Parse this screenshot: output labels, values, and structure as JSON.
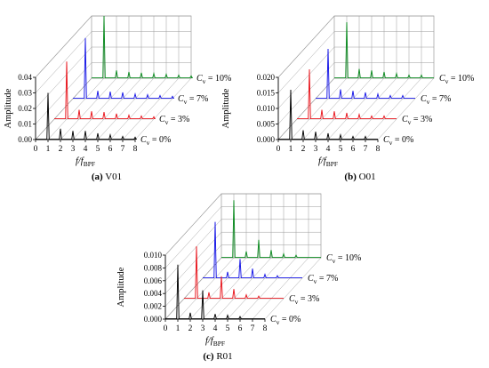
{
  "figure": {
    "axis_y_label": "Amplitude",
    "axis_x_label_main": "f/f",
    "axis_x_label_sub": "BPF",
    "cv_label_prefix": "C",
    "cv_label_sub": "v"
  },
  "colors": {
    "0%": "#000000",
    "3%": "#e8141b",
    "7%": "#1616e6",
    "10%": "#0a8a1f",
    "grid": "#9a9a9a"
  },
  "chart_data": [
    {
      "type": "line",
      "panel": "a",
      "caption_letter": "(a)",
      "caption_name": "V01",
      "xlabel": "f/fBPF",
      "ylabel": "Amplitude",
      "xlim": [
        0,
        8
      ],
      "ylim": [
        0,
        0.04
      ],
      "xticks": [
        0,
        1,
        2,
        3,
        4,
        5,
        6,
        7,
        8
      ],
      "yticks": [
        0.0,
        0.01,
        0.02,
        0.03,
        0.04
      ],
      "ytick_labels": [
        "0.00",
        "0.01",
        "0.02",
        "0.03",
        "0.04"
      ],
      "series": [
        {
          "name": "Cv = 0%",
          "peaks": [
            [
              1,
              0.03
            ],
            [
              2,
              0.007
            ],
            [
              3,
              0.0055
            ],
            [
              4,
              0.0055
            ],
            [
              5,
              0.004
            ],
            [
              6,
              0.003
            ],
            [
              7,
              0.002
            ],
            [
              8,
              0.0015
            ]
          ]
        },
        {
          "name": "Cv = 3%",
          "peaks": [
            [
              1,
              0.037
            ],
            [
              2,
              0.006
            ],
            [
              3,
              0.005
            ],
            [
              4,
              0.0045
            ],
            [
              5,
              0.0035
            ],
            [
              6,
              0.0025
            ],
            [
              7,
              0.002
            ],
            [
              8,
              0.0015
            ]
          ]
        },
        {
          "name": "Cv = 7%",
          "peaks": [
            [
              1,
              0.039
            ],
            [
              2,
              0.005
            ],
            [
              3,
              0.0045
            ],
            [
              4,
              0.004
            ],
            [
              5,
              0.003
            ],
            [
              6,
              0.0025
            ],
            [
              7,
              0.002
            ],
            [
              8,
              0.0015
            ]
          ]
        },
        {
          "name": "Cv = 10%",
          "peaks": [
            [
              1,
              0.04
            ],
            [
              2,
              0.005
            ],
            [
              3,
              0.004
            ],
            [
              4,
              0.0035
            ],
            [
              5,
              0.003
            ],
            [
              6,
              0.0025
            ],
            [
              7,
              0.002
            ],
            [
              8,
              0.0015
            ]
          ]
        }
      ]
    },
    {
      "type": "line",
      "panel": "b",
      "caption_letter": "(b)",
      "caption_name": "O01",
      "xlabel": "f/fBPF",
      "ylabel": "Amplitude",
      "xlim": [
        0,
        8
      ],
      "ylim": [
        0,
        0.02
      ],
      "xticks": [
        0,
        1,
        2,
        3,
        4,
        5,
        6,
        7,
        8
      ],
      "yticks": [
        0.0,
        0.005,
        0.01,
        0.015,
        0.02
      ],
      "ytick_labels": [
        "0.000",
        "0.005",
        "0.010",
        "0.015",
        "0.020"
      ],
      "series": [
        {
          "name": "Cv = 0%",
          "peaks": [
            [
              1,
              0.016
            ],
            [
              2,
              0.003
            ],
            [
              3,
              0.0025
            ],
            [
              4,
              0.002
            ],
            [
              5,
              0.0015
            ],
            [
              6,
              0.001
            ],
            [
              7,
              0.001
            ]
          ]
        },
        {
          "name": "Cv = 3%",
          "peaks": [
            [
              1,
              0.016
            ],
            [
              2,
              0.003
            ],
            [
              3,
              0.0025
            ],
            [
              4,
              0.002
            ],
            [
              5,
              0.0015
            ],
            [
              6,
              0.001
            ],
            [
              7,
              0.001
            ]
          ]
        },
        {
          "name": "Cv = 7%",
          "peaks": [
            [
              1,
              0.016
            ],
            [
              2,
              0.003
            ],
            [
              3,
              0.0025
            ],
            [
              4,
              0.002
            ],
            [
              5,
              0.0015
            ],
            [
              6,
              0.001
            ],
            [
              7,
              0.001
            ]
          ]
        },
        {
          "name": "Cv = 10%",
          "peaks": [
            [
              1,
              0.018
            ],
            [
              2,
              0.003
            ],
            [
              3,
              0.0025
            ],
            [
              4,
              0.002
            ],
            [
              5,
              0.0015
            ],
            [
              6,
              0.001
            ],
            [
              7,
              0.001
            ]
          ]
        }
      ]
    },
    {
      "type": "line",
      "panel": "c",
      "caption_letter": "(c)",
      "caption_name": "R01",
      "xlabel": "f/fBPF",
      "ylabel": "Amplitude",
      "xlim": [
        0,
        8
      ],
      "ylim": [
        0,
        0.01
      ],
      "xticks": [
        0,
        1,
        2,
        3,
        4,
        5,
        6,
        7,
        8
      ],
      "yticks": [
        0.0,
        0.002,
        0.004,
        0.006,
        0.008,
        0.01
      ],
      "ytick_labels": [
        "0.000",
        "0.002",
        "0.004",
        "0.006",
        "0.008",
        "0.010"
      ],
      "series": [
        {
          "name": "Cv = 0%",
          "peaks": [
            [
              1,
              0.0085
            ],
            [
              2,
              0.001
            ],
            [
              3,
              0.0045
            ],
            [
              4,
              0.0008
            ],
            [
              5,
              0.0006
            ],
            [
              6,
              0.0004
            ]
          ]
        },
        {
          "name": "Cv = 3%",
          "peaks": [
            [
              1,
              0.0082
            ],
            [
              2,
              0.001
            ],
            [
              3,
              0.0035
            ],
            [
              4,
              0.0015
            ],
            [
              5,
              0.0006
            ],
            [
              6,
              0.0004
            ]
          ]
        },
        {
          "name": "Cv = 7%",
          "peaks": [
            [
              1,
              0.0088
            ],
            [
              2,
              0.001
            ],
            [
              3,
              0.003
            ],
            [
              4,
              0.0015
            ],
            [
              5,
              0.0006
            ],
            [
              6,
              0.0004
            ]
          ]
        },
        {
          "name": "Cv = 10%",
          "peaks": [
            [
              1,
              0.009
            ],
            [
              2,
              0.001
            ],
            [
              3,
              0.0028
            ],
            [
              4,
              0.0012
            ],
            [
              5,
              0.0006
            ],
            [
              6,
              0.0004
            ]
          ]
        }
      ]
    }
  ]
}
